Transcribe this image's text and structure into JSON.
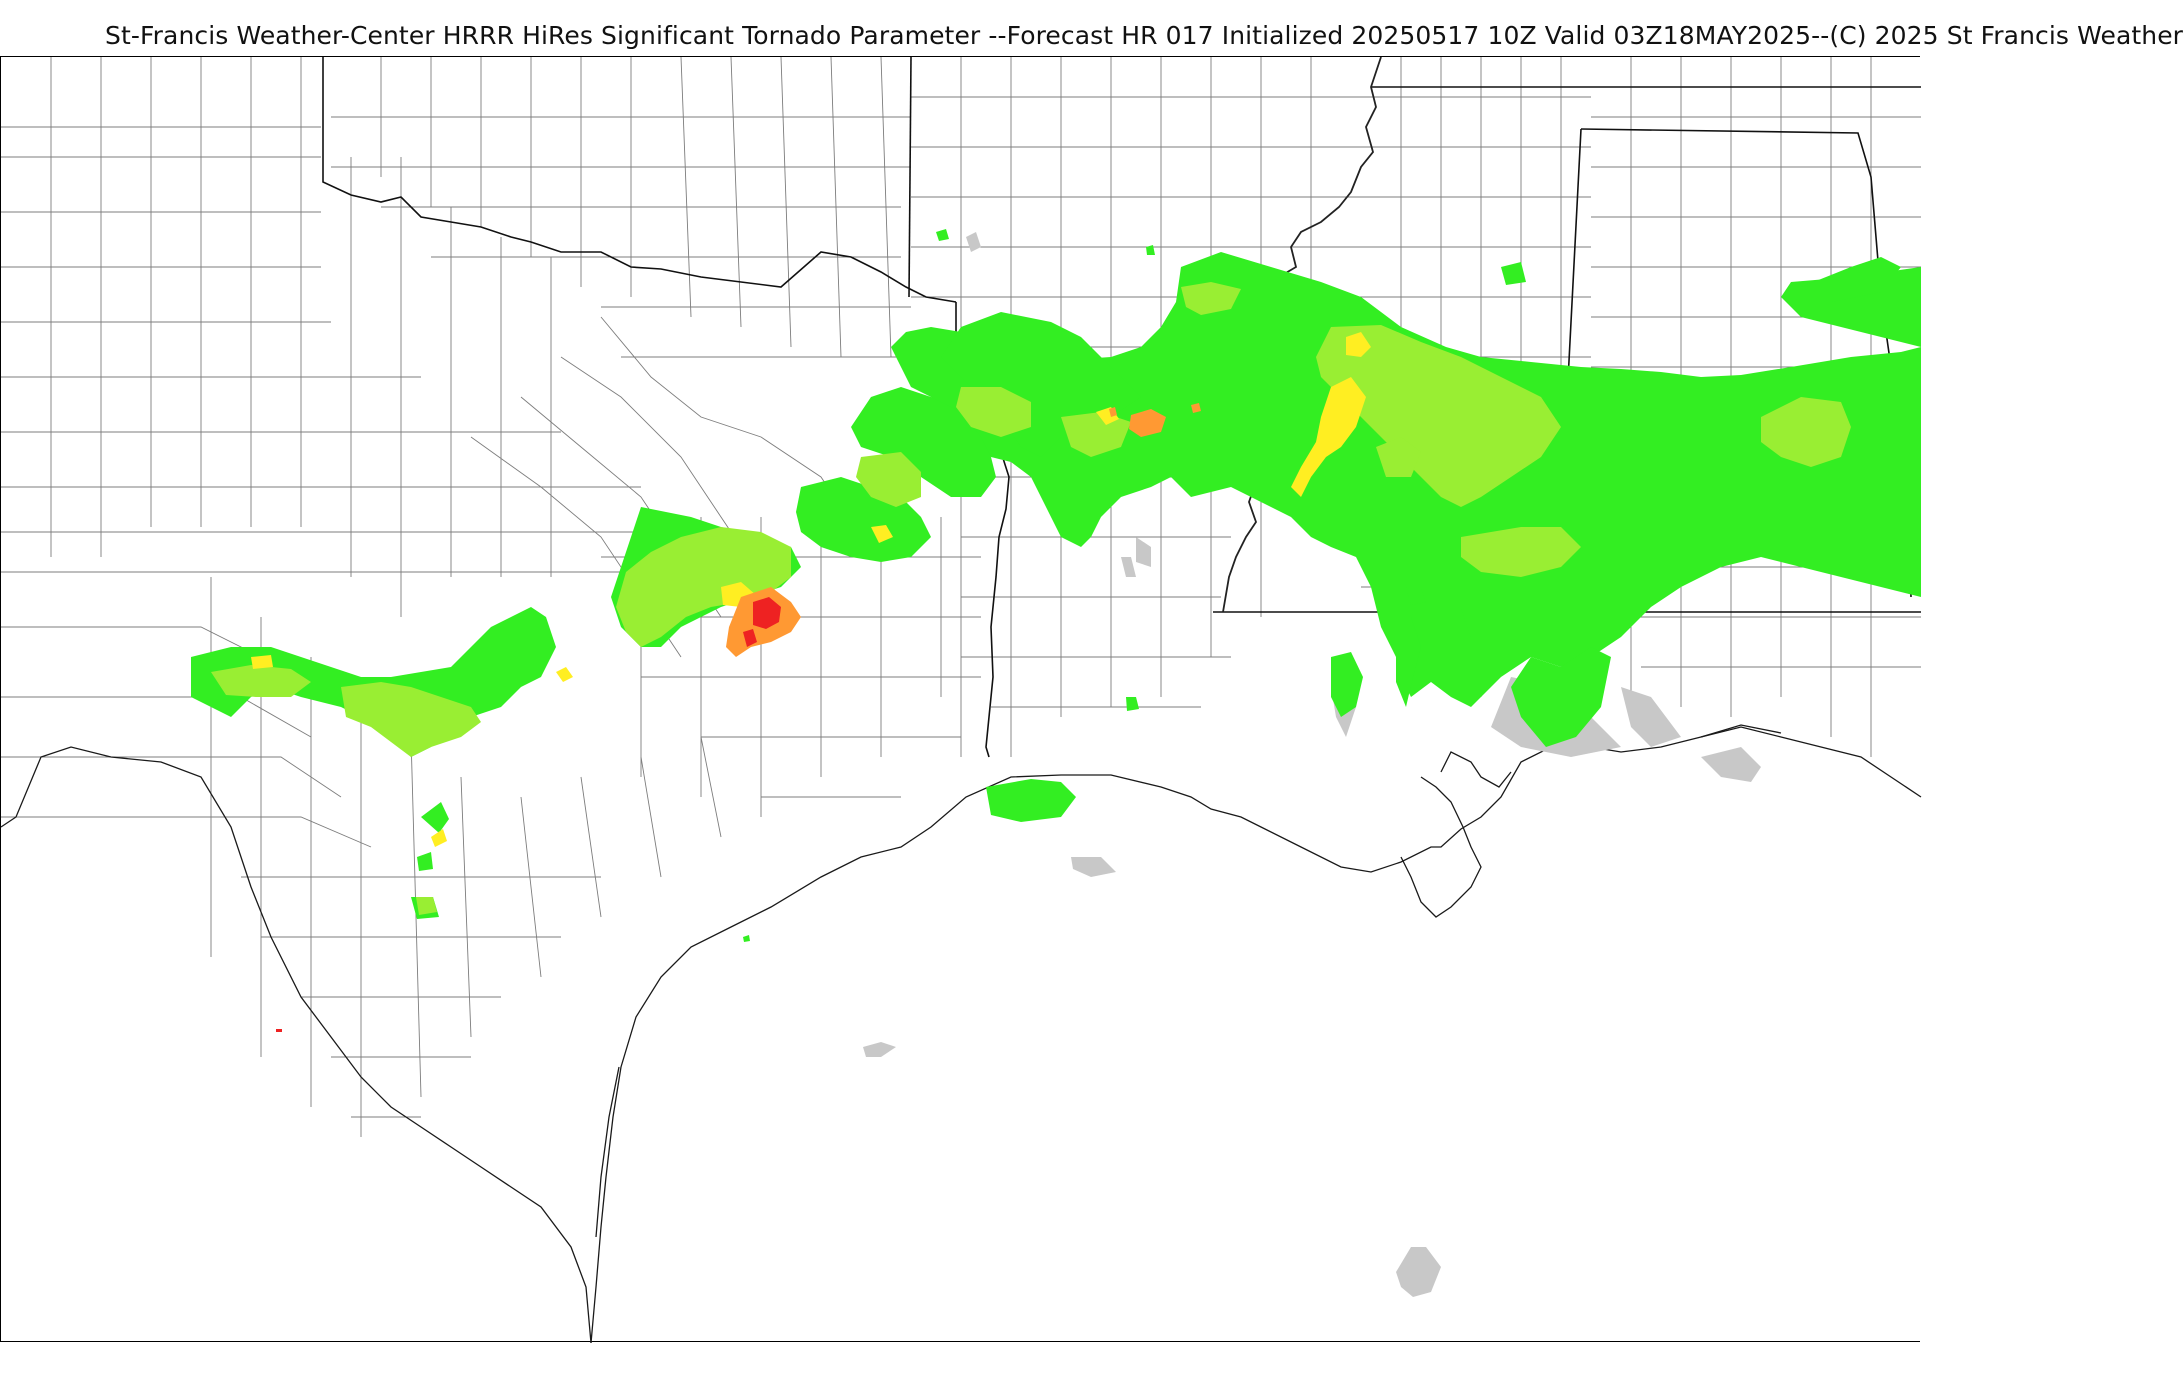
{
  "title": "St-Francis Weather-Center HRRR HiRes Significant Tornado Parameter --Forecast HR 017 Initialized 20250517 10Z Valid 03Z18MAY2025--(C) 2025 St Francis Weather",
  "colors": {
    "background": "#ffffff",
    "border": "#111111",
    "county_lines": "#7d7d7d",
    "stp_gray": "#c8c8c8",
    "stp_green": "#33ee22",
    "stp_lightgreen": "#99ee33",
    "stp_yellow": "#ffee22",
    "stp_orange": "#ff9933",
    "stp_red": "#ee2222"
  },
  "layers": {
    "basemap": "us-county-state-outlines",
    "field": "significant-tornado-parameter"
  }
}
